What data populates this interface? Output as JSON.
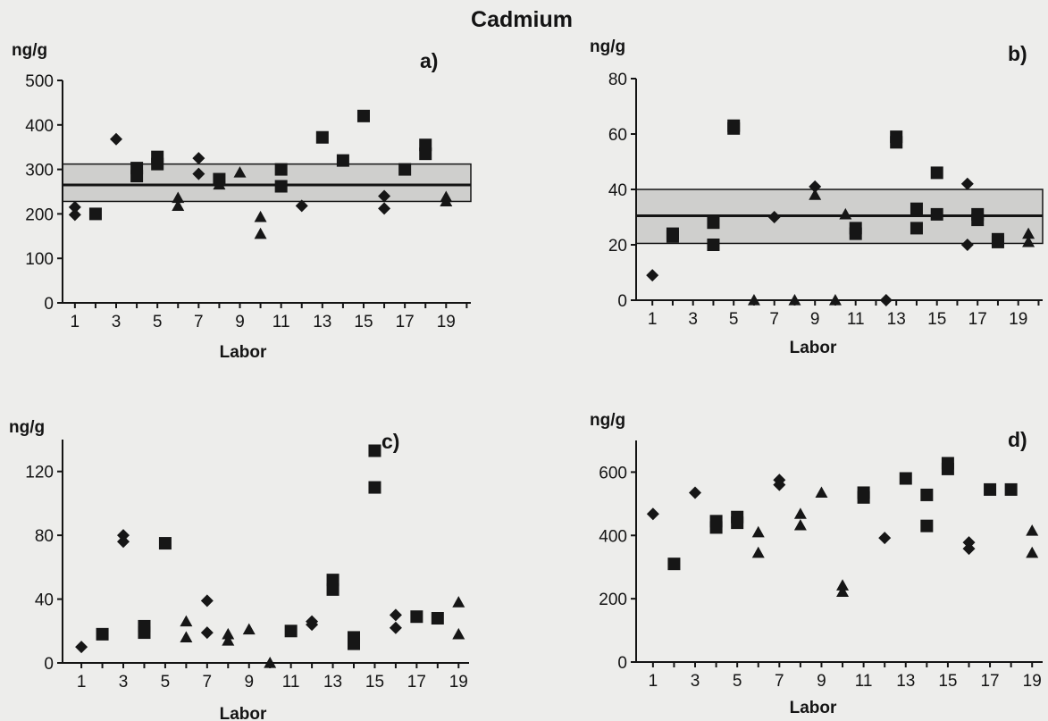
{
  "figure": {
    "title": "Cadmium"
  },
  "chart_data": [
    {
      "panel": "a)",
      "type": "scatter",
      "ylabel": "ng/g",
      "xlabel": "Labor",
      "xlim": [
        0.4,
        20.2
      ],
      "ylim": [
        0,
        500
      ],
      "xticks": [
        1,
        3,
        5,
        7,
        9,
        11,
        13,
        15,
        17,
        19
      ],
      "yticks": [
        0,
        100,
        200,
        300,
        400,
        500
      ],
      "reference": {
        "mean": 265,
        "band": [
          228,
          312
        ]
      },
      "series": [
        {
          "marker": "diamond",
          "points": [
            [
              1,
              215
            ],
            [
              1,
              198
            ],
            [
              3,
              368
            ],
            [
              7,
              325
            ],
            [
              7,
              290
            ],
            [
              12,
              218
            ],
            [
              16,
              240
            ],
            [
              16,
              212
            ]
          ]
        },
        {
          "marker": "square",
          "points": [
            [
              2,
              200
            ],
            [
              4,
              303
            ],
            [
              4,
              285
            ],
            [
              5,
              328
            ],
            [
              5,
              312
            ],
            [
              8,
              278
            ],
            [
              11,
              300
            ],
            [
              11,
              262
            ],
            [
              13,
              372
            ],
            [
              14,
              320
            ],
            [
              15,
              420
            ],
            [
              17,
              300
            ],
            [
              18,
              355
            ],
            [
              18,
              335
            ]
          ]
        },
        {
          "marker": "triangle",
          "points": [
            [
              6,
              236
            ],
            [
              6,
              218
            ],
            [
              8,
              266
            ],
            [
              9,
              293
            ],
            [
              10,
              193
            ],
            [
              10,
              155
            ],
            [
              19,
              238
            ],
            [
              19,
              228
            ]
          ]
        }
      ]
    },
    {
      "panel": "b)",
      "type": "scatter",
      "ylabel": "ng/g",
      "xlabel": "Labor",
      "xlim": [
        0.2,
        20.2
      ],
      "ylim": [
        0,
        80
      ],
      "xticks": [
        1,
        3,
        5,
        7,
        9,
        11,
        13,
        15,
        17,
        19
      ],
      "yticks": [
        0,
        20,
        40,
        60,
        80
      ],
      "reference": {
        "mean": 30.5,
        "band": [
          20.5,
          40
        ]
      },
      "series": [
        {
          "marker": "diamond",
          "points": [
            [
              1,
              9
            ],
            [
              7,
              30
            ],
            [
              9,
              41
            ],
            [
              12.5,
              0
            ],
            [
              16.5,
              42
            ],
            [
              16.5,
              20
            ]
          ]
        },
        {
          "marker": "square",
          "points": [
            [
              2,
              24
            ],
            [
              2,
              23
            ],
            [
              4,
              28
            ],
            [
              4,
              20
            ],
            [
              5,
              63
            ],
            [
              5,
              62
            ],
            [
              11,
              26
            ],
            [
              11,
              24
            ],
            [
              13,
              59
            ],
            [
              13,
              57
            ],
            [
              14,
              33
            ],
            [
              14,
              26
            ],
            [
              15,
              46
            ],
            [
              15,
              31
            ],
            [
              17,
              31
            ],
            [
              17,
              29
            ],
            [
              18,
              22
            ],
            [
              18,
              21
            ]
          ]
        },
        {
          "marker": "triangle",
          "points": [
            [
              6,
              0
            ],
            [
              8,
              0
            ],
            [
              9,
              38
            ],
            [
              10,
              0
            ],
            [
              10.5,
              31
            ],
            [
              19.5,
              24
            ],
            [
              19.5,
              21
            ]
          ]
        }
      ]
    },
    {
      "panel": "c)",
      "type": "scatter",
      "ylabel": "ng/g",
      "xlabel": "Labor",
      "xlim": [
        0.1,
        19.5
      ],
      "ylim": [
        0,
        140
      ],
      "xticks": [
        1,
        3,
        5,
        7,
        9,
        11,
        13,
        15,
        17,
        19
      ],
      "yticks": [
        0,
        40,
        80,
        120
      ],
      "reference": null,
      "series": [
        {
          "marker": "diamond",
          "points": [
            [
              1,
              10
            ],
            [
              3,
              80
            ],
            [
              3,
              76
            ],
            [
              7,
              39
            ],
            [
              7,
              19
            ],
            [
              12,
              26
            ],
            [
              12,
              24
            ],
            [
              16,
              30
            ],
            [
              16,
              22
            ]
          ]
        },
        {
          "marker": "square",
          "points": [
            [
              2,
              18
            ],
            [
              4,
              23
            ],
            [
              4,
              19
            ],
            [
              5,
              75
            ],
            [
              11,
              20
            ],
            [
              13,
              52
            ],
            [
              13,
              46
            ],
            [
              14,
              16
            ],
            [
              14,
              12
            ],
            [
              15,
              133
            ],
            [
              15,
              110
            ],
            [
              17,
              29
            ],
            [
              18,
              28
            ]
          ]
        },
        {
          "marker": "triangle",
          "points": [
            [
              6,
              26
            ],
            [
              6,
              16
            ],
            [
              8,
              18
            ],
            [
              8,
              14
            ],
            [
              9,
              21
            ],
            [
              10,
              0
            ],
            [
              19,
              38
            ],
            [
              19,
              18
            ]
          ]
        }
      ]
    },
    {
      "panel": "d)",
      "type": "scatter",
      "ylabel": "ng/g",
      "xlabel": "Labor",
      "xlim": [
        0.2,
        19.5
      ],
      "ylim": [
        0,
        700
      ],
      "xticks": [
        1,
        3,
        5,
        7,
        9,
        11,
        13,
        15,
        17,
        19
      ],
      "yticks": [
        0,
        200,
        400,
        600
      ],
      "reference": null,
      "series": [
        {
          "marker": "diamond",
          "points": [
            [
              1,
              468
            ],
            [
              3,
              535
            ],
            [
              7,
              575
            ],
            [
              7,
              560
            ],
            [
              12,
              392
            ],
            [
              16,
              378
            ],
            [
              16,
              358
            ]
          ]
        },
        {
          "marker": "square",
          "points": [
            [
              2,
              310
            ],
            [
              4,
              445
            ],
            [
              4,
              425
            ],
            [
              5,
              458
            ],
            [
              5,
              440
            ],
            [
              11,
              535
            ],
            [
              11,
              520
            ],
            [
              13,
              580
            ],
            [
              14,
              528
            ],
            [
              14,
              430
            ],
            [
              15,
              628
            ],
            [
              15,
              610
            ],
            [
              17,
              545
            ],
            [
              18,
              545
            ]
          ]
        },
        {
          "marker": "triangle",
          "points": [
            [
              6,
              410
            ],
            [
              6,
              345
            ],
            [
              8,
              468
            ],
            [
              8,
              432
            ],
            [
              9,
              535
            ],
            [
              10,
              242
            ],
            [
              10,
              222
            ],
            [
              19,
              415
            ],
            [
              19,
              345
            ]
          ]
        }
      ]
    }
  ]
}
